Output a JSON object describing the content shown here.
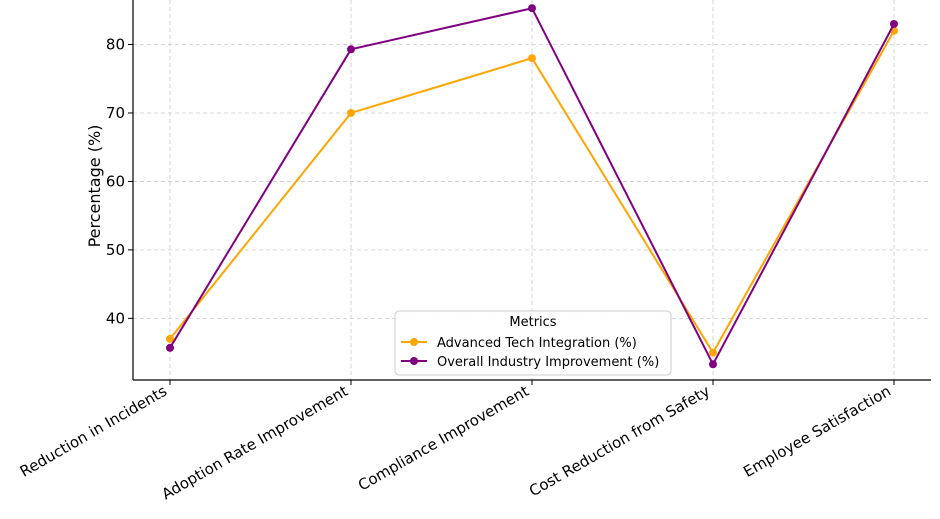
{
  "chart_data": {
    "type": "line",
    "title": "",
    "xlabel": "",
    "ylabel": "Percentage (%)",
    "categories": [
      "Reduction in Incidents",
      "Adoption Rate Improvement",
      "Compliance Improvement",
      "Cost Reduction from Safety",
      "Employee Satisfaction"
    ],
    "series": [
      {
        "name": "Advanced Tech Integration (%)",
        "color": "#FFA500",
        "values": [
          37,
          70,
          78,
          35,
          82
        ]
      },
      {
        "name": "Overall Industry Improvement (%)",
        "color": "#800080",
        "values": [
          35.7,
          79.3,
          85.3,
          33.3,
          83
        ]
      }
    ],
    "ylim": [
      31,
      86.5
    ],
    "yticks": [
      40,
      50,
      60,
      70,
      80
    ],
    "grid": true,
    "legend": {
      "title": "Metrics",
      "placement": "bottom-center"
    }
  }
}
